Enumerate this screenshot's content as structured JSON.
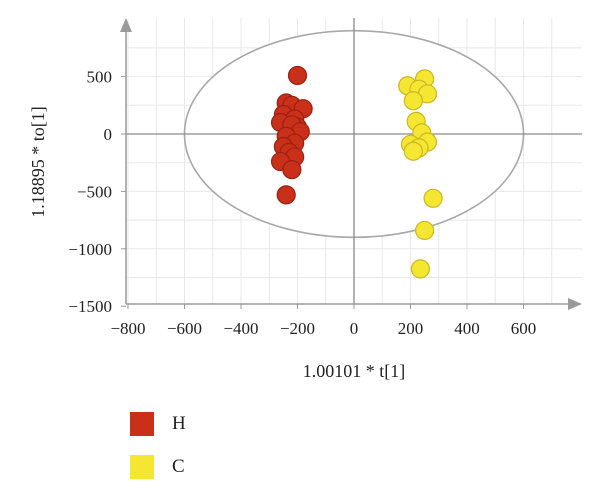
{
  "chart_data": {
    "type": "scatter",
    "xlabel": "1.00101 * t[1]",
    "ylabel": "1.18895 * to[1]",
    "xlim": [
      -850,
      800
    ],
    "ylim": [
      -1500,
      950
    ],
    "x_ticks": [
      -800,
      -600,
      -400,
      -200,
      0,
      200,
      400,
      600
    ],
    "y_ticks": [
      500,
      0,
      -500,
      -1000,
      -1500
    ],
    "x_tick_labels": [
      "−800",
      "−600",
      "−400",
      "−200",
      "0",
      "200",
      "400",
      "600"
    ],
    "y_tick_labels": [
      "500",
      "0",
      "−500",
      "−1000",
      "−1500"
    ],
    "grid": true,
    "ellipse": {
      "rx": 600,
      "ry": 900
    },
    "legend_position": "bottom-left",
    "series": [
      {
        "name": "H",
        "color": "#c8301a",
        "points": [
          [
            -200,
            510
          ],
          [
            -240,
            270
          ],
          [
            -220,
            250
          ],
          [
            -180,
            220
          ],
          [
            -250,
            170
          ],
          [
            -210,
            130
          ],
          [
            -260,
            100
          ],
          [
            -200,
            60
          ],
          [
            -220,
            80
          ],
          [
            -190,
            20
          ],
          [
            -240,
            -20
          ],
          [
            -210,
            -80
          ],
          [
            -250,
            -110
          ],
          [
            -230,
            -160
          ],
          [
            -210,
            -200
          ],
          [
            -260,
            -240
          ],
          [
            -220,
            -310
          ],
          [
            -240,
            -530
          ]
        ]
      },
      {
        "name": "C",
        "color": "#f5e632",
        "points": [
          [
            250,
            480
          ],
          [
            190,
            420
          ],
          [
            230,
            390
          ],
          [
            260,
            350
          ],
          [
            210,
            290
          ],
          [
            220,
            110
          ],
          [
            240,
            10
          ],
          [
            260,
            -70
          ],
          [
            200,
            -90
          ],
          [
            230,
            -120
          ],
          [
            210,
            -150
          ],
          [
            280,
            -560
          ],
          [
            250,
            -840
          ],
          [
            235,
            -1175
          ]
        ]
      }
    ]
  },
  "legend": {
    "items": [
      {
        "label": "H",
        "color": "#c8301a"
      },
      {
        "label": "C",
        "color": "#f5e632"
      }
    ]
  }
}
